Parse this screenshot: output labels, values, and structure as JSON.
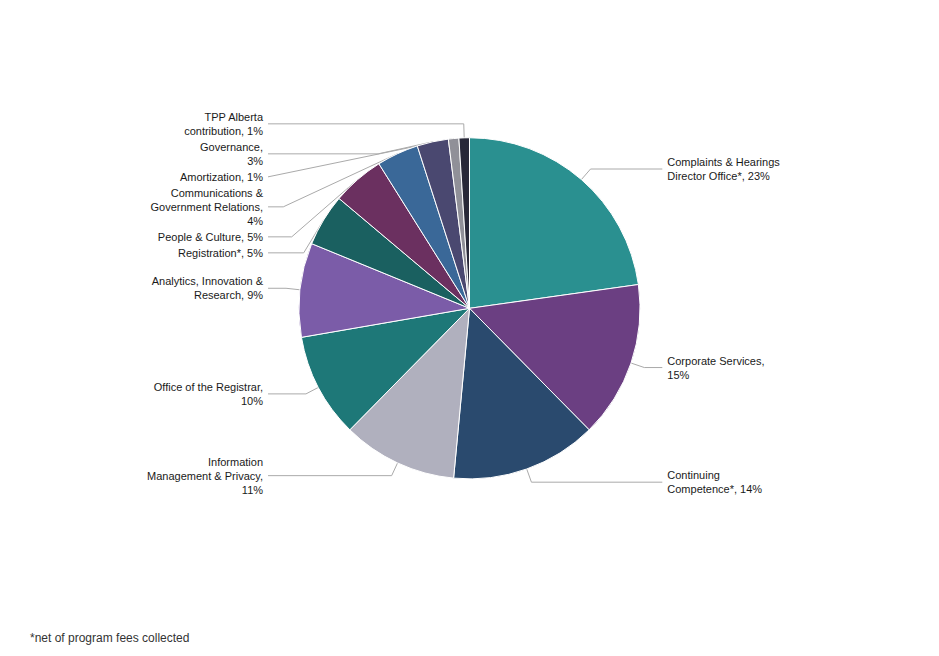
{
  "chart_data": {
    "type": "pie",
    "categories": [
      "Complaints & Hearings\nDirector Office*, 23%",
      "Corporate Services,\n15%",
      "Continuing\nCompetence*, 14%",
      "Information\nManagement & Privacy,\n11%",
      "Office of the Registrar,\n10%",
      "Analytics, Innovation &\nResearch, 9%",
      "Registration*, 5%",
      "People & Culture, 5%",
      "Communications &\nGovernment Relations,\n4%",
      "Governance,\n3%",
      "Amortization, 1%",
      "TPP Alberta\ncontribution, 1%"
    ],
    "values": [
      23,
      15,
      14,
      11,
      10,
      9,
      5,
      5,
      4,
      3,
      1,
      1
    ],
    "colors": [
      "#2a9090",
      "#6b3f82",
      "#2a4a6e",
      "#b0b0be",
      "#1e7878",
      "#7b5ca8",
      "#1a6060",
      "#6b3060",
      "#3a6898",
      "#4a4870",
      "#909098",
      "#282838"
    ],
    "annotations": [
      "*net of program fees collected"
    ]
  }
}
